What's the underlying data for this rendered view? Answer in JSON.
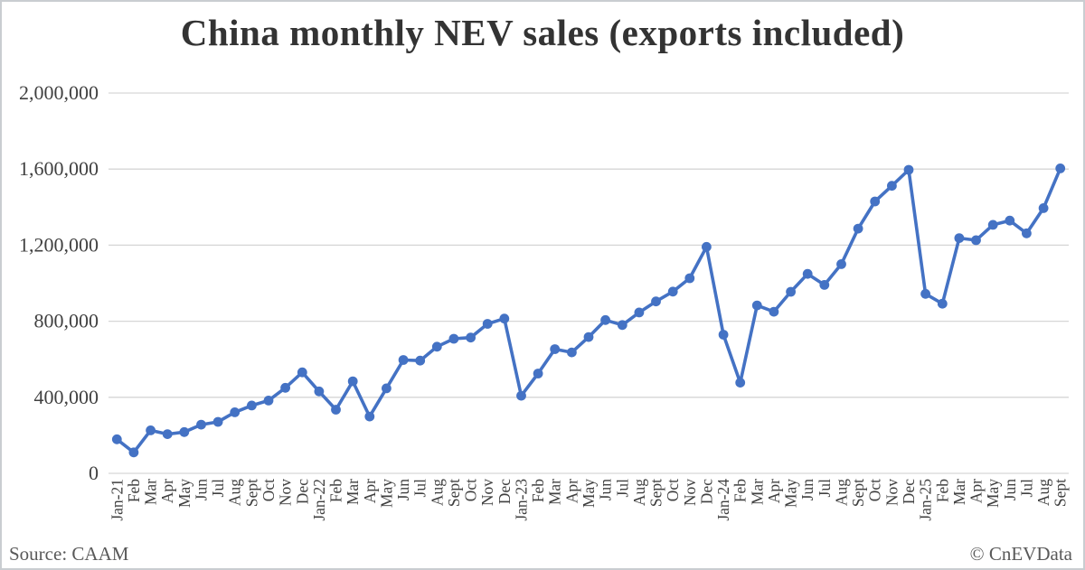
{
  "title": "China monthly NEV sales (exports included)",
  "footer": {
    "source": "Source: CAAM",
    "credit": "© CnEVData"
  },
  "colors": {
    "line": "#4472C4",
    "marker": "#4472C4",
    "grid": "#d6d6d6",
    "title_text": "#333333",
    "axis_text": "#404040",
    "footer_text": "#595959",
    "border": "#c9cdd1",
    "background": "#ffffff"
  },
  "chart_data": {
    "type": "line",
    "title": "China monthly NEV sales (exports included)",
    "xlabel": "",
    "ylabel": "",
    "ylim": [
      0,
      2000000
    ],
    "ytick_interval": 400000,
    "ytick_values": [
      0,
      400000,
      800000,
      1200000,
      1600000,
      2000000
    ],
    "ytick_labels": [
      "0",
      "400,000",
      "800,000",
      "1,200,000",
      "1,600,000",
      "2,000,000"
    ],
    "grid": true,
    "legend": false,
    "marker": "circle",
    "categories": [
      "Jan-21",
      "Feb",
      "Mar",
      "Apr",
      "May",
      "Jun",
      "Jul",
      "Aug",
      "Sept",
      "Oct",
      "Nov",
      "Dec",
      "Jan-22",
      "Feb",
      "Mar",
      "Apr",
      "May",
      "Jun",
      "Jul",
      "Aug",
      "Sept",
      "Oct",
      "Nov",
      "Dec",
      "Jan-23",
      "Feb",
      "Mar",
      "Apr",
      "May",
      "Jun",
      "Jul",
      "Aug",
      "Sept",
      "Oct",
      "Nov",
      "Dec",
      "Jan-24",
      "Feb",
      "Mar",
      "Apr",
      "May",
      "Jun",
      "Jul",
      "Aug",
      "Sept",
      "Oct",
      "Nov",
      "Dec",
      "Jan-25",
      "Feb",
      "Mar",
      "Apr",
      "May",
      "Jun",
      "Jul",
      "Aug",
      "Sept"
    ],
    "series": [
      {
        "name": "China monthly NEV sales",
        "values": [
          179000,
          110000,
          226000,
          206000,
          217000,
          256000,
          271000,
          321000,
          357000,
          383000,
          450000,
          531000,
          431000,
          335000,
          484000,
          299000,
          447000,
          596000,
          593000,
          666000,
          708000,
          714000,
          786000,
          814000,
          408000,
          525000,
          653000,
          636000,
          717000,
          806000,
          780000,
          846000,
          904000,
          956000,
          1026000,
          1191000,
          729000,
          477000,
          883000,
          850000,
          955000,
          1049000,
          991000,
          1100000,
          1287000,
          1430000,
          1512000,
          1596000,
          944000,
          892000,
          1237000,
          1226000,
          1307000,
          1329000,
          1262000,
          1395000,
          1604000
        ]
      }
    ]
  }
}
